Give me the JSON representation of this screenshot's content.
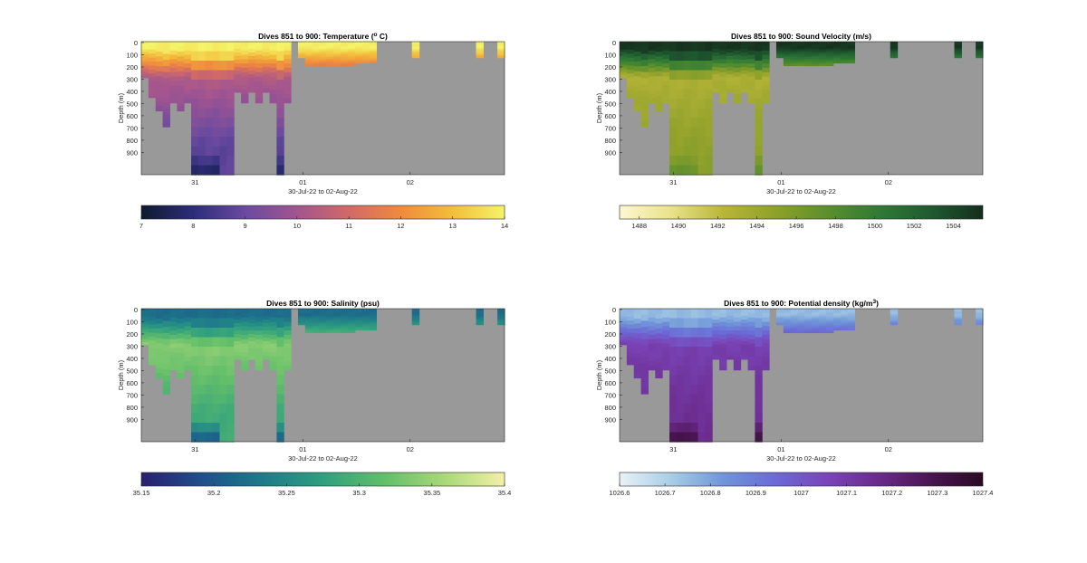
{
  "chart_data": [
    {
      "type": "heatmap",
      "title": "Dives 851 to 900: Temperature (°C)",
      "title_main": "Dives 851 to 900: Temperature (",
      "title_sup": "o",
      "title_tail": " C)",
      "ylabel": "Depth (m)",
      "xlabel": "30-Jul-22 to 02-Aug-22",
      "yticks": [
        "0",
        "100",
        "200",
        "300",
        "400",
        "500",
        "600",
        "700",
        "800",
        "900"
      ],
      "xticks": [
        "31",
        "01",
        "02"
      ],
      "colorbar": {
        "min": 7,
        "max": 14,
        "ticks": [
          "7",
          "8",
          "9",
          "10",
          "11",
          "12",
          "13",
          "14"
        ],
        "stops": [
          "#0d1b2e",
          "#2c2d7a",
          "#6a4aa0",
          "#a2558f",
          "#d06a66",
          "#f08a3e",
          "#f3be3b",
          "#f4f46a"
        ]
      },
      "profile": {
        "surface_value": 13.9,
        "mixed_layer_value": 10.3,
        "deep_value": 8.8,
        "bottom_value": 7.2
      }
    },
    {
      "type": "heatmap",
      "title": "Dives 851 to 900: Sound Velocity (m/s)",
      "title_main": "Dives 851 to 900: Sound Velocity (m/s)",
      "title_sup": "",
      "title_tail": "",
      "ylabel": "Depth (m)",
      "xlabel": "30-Jul-22 to 02-Aug-22",
      "yticks": [
        "0",
        "100",
        "200",
        "300",
        "400",
        "500",
        "600",
        "700",
        "800",
        "900"
      ],
      "xticks": [
        "31",
        "01",
        "02"
      ],
      "colorbar": {
        "min": 1487,
        "max": 1505.5,
        "ticks": [
          "1488",
          "1490",
          "1492",
          "1494",
          "1496",
          "1498",
          "1500",
          "1502",
          "1504"
        ],
        "stops": [
          "#fdf7d0",
          "#e9e28a",
          "#b9b53a",
          "#8ea12a",
          "#5c8f2c",
          "#2f7a35",
          "#1f5a30",
          "#142e1c"
        ]
      },
      "profile": {
        "surface_value": 1505,
        "mixed_layer_value": 1493,
        "deep_value": 1495,
        "bottom_value": 1498
      }
    },
    {
      "type": "heatmap",
      "title": "Dives 851 to 900: Salinity (psu)",
      "title_main": "Dives 851 to 900: Salinity (psu)",
      "title_sup": "",
      "title_tail": "",
      "ylabel": "Depth (m)",
      "xlabel": "30-Jul-22 to 02-Aug-22",
      "yticks": [
        "0",
        "100",
        "200",
        "300",
        "400",
        "500",
        "600",
        "700",
        "800",
        "900"
      ],
      "xticks": [
        "31",
        "01",
        "02"
      ],
      "colorbar": {
        "min": 35.15,
        "max": 35.4,
        "ticks": [
          "35.15",
          "35.2",
          "35.25",
          "35.3",
          "35.35",
          "35.4"
        ],
        "stops": [
          "#2a1f6e",
          "#1f4f8a",
          "#1e7a8a",
          "#2f9f7f",
          "#62be6a",
          "#a8d87a",
          "#f3f0a8"
        ]
      },
      "profile": {
        "surface_value": 35.22,
        "mixed_layer_value": 35.34,
        "deep_value": 35.29,
        "bottom_value": 35.17
      }
    },
    {
      "type": "heatmap",
      "title": "Dives 851 to 900: Potential density (kg/m³)",
      "title_main": "Dives 851 to 900: Potential density (kg/m",
      "title_sup": "3",
      "title_tail": ")",
      "ylabel": "Depth (m)",
      "xlabel": "30-Jul-22 to 02-Aug-22",
      "yticks": [
        "0",
        "100",
        "200",
        "300",
        "400",
        "500",
        "600",
        "700",
        "800",
        "900"
      ],
      "xticks": [
        "31",
        "01",
        "02"
      ],
      "colorbar": {
        "min": 1026.6,
        "max": 1027.4,
        "ticks": [
          "1026.6",
          "1026.7",
          "1026.8",
          "1026.9",
          "1027",
          "1027.1",
          "1027.2",
          "1027.3",
          "1027.4"
        ],
        "stops": [
          "#e8f2f6",
          "#a7cde6",
          "#6f95d8",
          "#6b6ad6",
          "#7a45b8",
          "#6a2a8a",
          "#4a1553",
          "#2a0a22"
        ]
      },
      "profile": {
        "surface_value": 1026.75,
        "mixed_layer_value": 1027.08,
        "deep_value": 1027.15,
        "bottom_value": 1027.38
      }
    }
  ],
  "colors": {
    "nodata": "#999999",
    "background": "#ffffff",
    "axis": "#262626"
  }
}
